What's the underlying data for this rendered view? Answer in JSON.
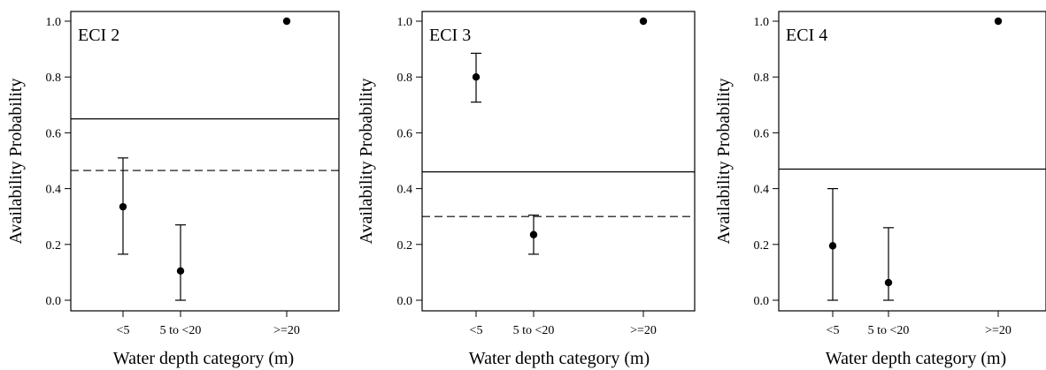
{
  "chart_data": [
    {
      "type": "scatter",
      "panel_label": "ECI 2",
      "categories": [
        "<5",
        "5 to <20",
        ">=20"
      ],
      "values": [
        0.335,
        0.105,
        1.0
      ],
      "error_low": [
        0.165,
        0.0,
        1.0
      ],
      "error_high": [
        0.51,
        0.27,
        1.0
      ],
      "reference_lines": [
        {
          "style": "solid",
          "value": 0.65
        },
        {
          "style": "dashed",
          "value": 0.465
        }
      ],
      "xlabel": "Water depth category (m)",
      "ylabel": "Availability Probability",
      "ylim": [
        0.0,
        1.0
      ],
      "yticks": [
        "0.0",
        "0.2",
        "0.4",
        "0.6",
        "0.8",
        "1.0"
      ],
      "grid": false
    },
    {
      "type": "scatter",
      "panel_label": "ECI 3",
      "categories": [
        "<5",
        "5 to <20",
        ">=20"
      ],
      "values": [
        0.8,
        0.235,
        1.0
      ],
      "error_low": [
        0.71,
        0.165,
        1.0
      ],
      "error_high": [
        0.885,
        0.305,
        1.0
      ],
      "reference_lines": [
        {
          "style": "solid",
          "value": 0.46
        },
        {
          "style": "dashed",
          "value": 0.3
        }
      ],
      "xlabel": "Water depth category (m)",
      "ylabel": "Availability Probability",
      "ylim": [
        0.0,
        1.0
      ],
      "yticks": [
        "0.0",
        "0.2",
        "0.4",
        "0.6",
        "0.8",
        "1.0"
      ],
      "grid": false
    },
    {
      "type": "scatter",
      "panel_label": "ECI 4",
      "categories": [
        "<5",
        "5 to <20",
        ">=20"
      ],
      "values": [
        0.195,
        0.063,
        1.0
      ],
      "error_low": [
        0.0,
        0.0,
        1.0
      ],
      "error_high": [
        0.4,
        0.26,
        1.0
      ],
      "reference_lines": [
        {
          "style": "solid",
          "value": 0.47
        }
      ],
      "xlabel": "Water depth category (m)",
      "ylabel": "Availability Probability",
      "ylim": [
        0.0,
        1.0
      ],
      "yticks": [
        "0.0",
        "0.2",
        "0.4",
        "0.6",
        "0.8",
        "1.0"
      ],
      "grid": false
    }
  ]
}
